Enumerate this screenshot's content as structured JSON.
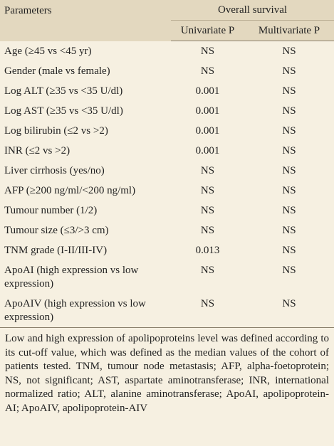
{
  "table": {
    "header": {
      "parameters": "Parameters",
      "group": "Overall survival",
      "univariate": "Univariate P",
      "multivariate": "Multivariate P"
    },
    "rows": [
      [
        "Age (≥45 vs <45 yr)",
        "NS",
        "NS"
      ],
      [
        "Gender (male vs female)",
        "NS",
        "NS"
      ],
      [
        "Log ALT (≥35 vs <35 U/dl)",
        "0.001",
        "NS"
      ],
      [
        "Log AST (≥35 vs <35 U/dl)",
        "0.001",
        "NS"
      ],
      [
        "Log bilirubin (≤2 vs >2)",
        "0.001",
        "NS"
      ],
      [
        "INR (≤2 vs >2)",
        "0.001",
        "NS"
      ],
      [
        "Liver cirrhosis (yes/no)",
        "NS",
        "NS"
      ],
      [
        "AFP (≥200 ng/ml/<200 ng/ml)",
        "NS",
        "NS"
      ],
      [
        "Tumour number (1/2)",
        "NS",
        "NS"
      ],
      [
        "Tumour size (≤3/>3 cm)",
        "NS",
        "NS"
      ],
      [
        "TNM grade (I-II/III-IV)",
        "0.013",
        "NS"
      ],
      [
        "ApoAI (high expression vs low expression)",
        "NS",
        "NS"
      ],
      [
        "ApoAIV (high expression vs low expression)",
        "NS",
        "NS"
      ]
    ],
    "footnote": "Low and high expression of apolipoproteins level was defined according to its cut-off value, which was defined as the median values of the cohort of patients tested. TNM, tumour node metastasis; AFP, alpha-foetoprotein; NS, not significant; AST, aspartate aminotransferase; INR, international normalized ratio; ALT, alanine aminotransferase; ApoAI, apolipoprotein-AI; ApoAIV, apolipoprotein-AIV"
  }
}
